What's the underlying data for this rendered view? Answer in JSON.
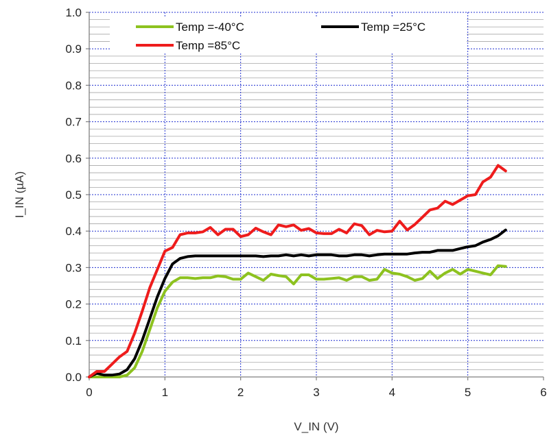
{
  "chart_data": {
    "type": "line",
    "xlabel": "V_IN (V)",
    "ylabel": "I_IN (µA)",
    "xlim": [
      0,
      6
    ],
    "ylim": [
      0,
      1
    ],
    "xticks": [
      "0",
      "1",
      "2",
      "3",
      "4",
      "5",
      "6"
    ],
    "yticks": [
      "0.0",
      "0.1",
      "0.2",
      "0.3",
      "0.4",
      "0.5",
      "0.6",
      "0.7",
      "0.8",
      "0.9",
      "1.0"
    ],
    "grid": {
      "major": "blue dashed",
      "minor_y": "gray",
      "on": true
    },
    "legend_position": "top",
    "series": [
      {
        "name": "Temp =-40°C",
        "color": "#8dc21f",
        "x": [
          0,
          0.1,
          0.2,
          0.3,
          0.4,
          0.5,
          0.6,
          0.7,
          0.8,
          0.9,
          1.0,
          1.1,
          1.2,
          1.3,
          1.4,
          1.5,
          1.6,
          1.7,
          1.8,
          1.9,
          2.0,
          2.1,
          2.2,
          2.3,
          2.4,
          2.5,
          2.6,
          2.7,
          2.8,
          2.9,
          3.0,
          3.1,
          3.2,
          3.3,
          3.4,
          3.5,
          3.6,
          3.7,
          3.8,
          3.9,
          4.0,
          4.1,
          4.2,
          4.3,
          4.4,
          4.5,
          4.6,
          4.7,
          4.8,
          4.9,
          5.0,
          5.1,
          5.2,
          5.3,
          5.4,
          5.5
        ],
        "y": [
          0.0,
          0.0,
          0.0,
          0.0,
          0.0,
          0.005,
          0.025,
          0.07,
          0.13,
          0.19,
          0.235,
          0.26,
          0.272,
          0.272,
          0.27,
          0.272,
          0.272,
          0.277,
          0.275,
          0.268,
          0.268,
          0.285,
          0.275,
          0.265,
          0.282,
          0.278,
          0.275,
          0.255,
          0.28,
          0.28,
          0.268,
          0.268,
          0.27,
          0.272,
          0.265,
          0.275,
          0.275,
          0.265,
          0.268,
          0.295,
          0.285,
          0.282,
          0.275,
          0.265,
          0.27,
          0.29,
          0.27,
          0.285,
          0.295,
          0.282,
          0.295,
          0.29,
          0.285,
          0.28,
          0.305,
          0.303
        ]
      },
      {
        "name": "Temp =25°C",
        "color": "#000000",
        "x": [
          0,
          0.1,
          0.2,
          0.3,
          0.4,
          0.5,
          0.6,
          0.7,
          0.8,
          0.9,
          1.0,
          1.1,
          1.2,
          1.3,
          1.4,
          1.5,
          1.6,
          1.7,
          1.8,
          1.9,
          2.0,
          2.1,
          2.2,
          2.3,
          2.4,
          2.5,
          2.6,
          2.7,
          2.8,
          2.9,
          3.0,
          3.1,
          3.2,
          3.3,
          3.4,
          3.5,
          3.6,
          3.7,
          3.8,
          3.9,
          4.0,
          4.1,
          4.2,
          4.3,
          4.4,
          4.5,
          4.6,
          4.7,
          4.8,
          4.9,
          5.0,
          5.1,
          5.2,
          5.3,
          5.4,
          5.5
        ],
        "y": [
          0.0,
          0.01,
          0.005,
          0.005,
          0.008,
          0.02,
          0.05,
          0.1,
          0.16,
          0.22,
          0.27,
          0.31,
          0.325,
          0.33,
          0.332,
          0.332,
          0.332,
          0.332,
          0.332,
          0.332,
          0.332,
          0.332,
          0.332,
          0.33,
          0.332,
          0.332,
          0.335,
          0.332,
          0.335,
          0.332,
          0.335,
          0.335,
          0.335,
          0.332,
          0.332,
          0.335,
          0.335,
          0.332,
          0.335,
          0.337,
          0.337,
          0.337,
          0.337,
          0.34,
          0.342,
          0.342,
          0.347,
          0.347,
          0.347,
          0.352,
          0.357,
          0.36,
          0.37,
          0.377,
          0.387,
          0.403
        ]
      },
      {
        "name": "Temp =85°C",
        "color": "#ee1c1c",
        "x": [
          0,
          0.1,
          0.2,
          0.3,
          0.4,
          0.5,
          0.6,
          0.7,
          0.8,
          0.9,
          1.0,
          1.1,
          1.2,
          1.3,
          1.4,
          1.5,
          1.6,
          1.7,
          1.8,
          1.9,
          2.0,
          2.1,
          2.2,
          2.3,
          2.4,
          2.5,
          2.6,
          2.7,
          2.8,
          2.9,
          3.0,
          3.1,
          3.2,
          3.3,
          3.4,
          3.5,
          3.6,
          3.7,
          3.8,
          3.9,
          4.0,
          4.1,
          4.2,
          4.3,
          4.4,
          4.5,
          4.6,
          4.7,
          4.8,
          4.9,
          5.0,
          5.1,
          5.2,
          5.3,
          5.4,
          5.5
        ],
        "y": [
          0.0,
          0.015,
          0.015,
          0.035,
          0.055,
          0.07,
          0.12,
          0.18,
          0.245,
          0.295,
          0.345,
          0.355,
          0.39,
          0.395,
          0.395,
          0.398,
          0.41,
          0.39,
          0.405,
          0.405,
          0.385,
          0.39,
          0.408,
          0.398,
          0.39,
          0.417,
          0.412,
          0.417,
          0.402,
          0.407,
          0.395,
          0.393,
          0.393,
          0.405,
          0.395,
          0.42,
          0.415,
          0.39,
          0.402,
          0.398,
          0.4,
          0.427,
          0.403,
          0.418,
          0.438,
          0.458,
          0.463,
          0.482,
          0.473,
          0.485,
          0.497,
          0.5,
          0.535,
          0.548,
          0.58,
          0.565
        ]
      }
    ]
  }
}
